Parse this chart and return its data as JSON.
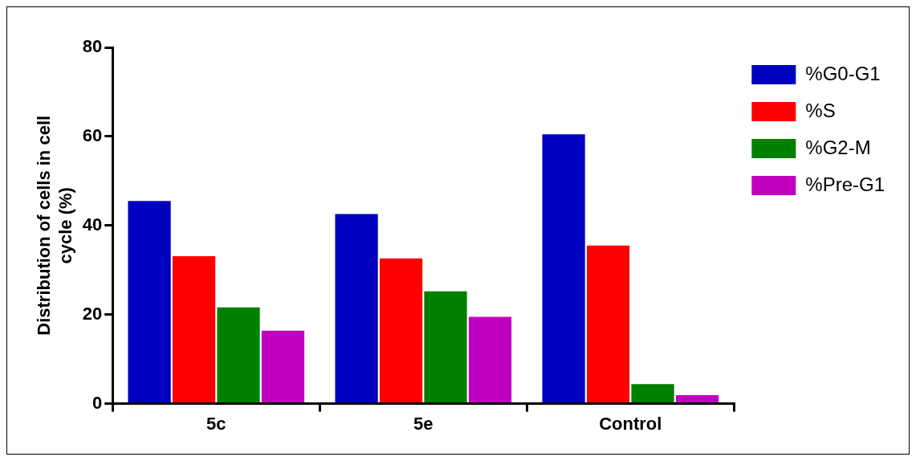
{
  "chart_data": {
    "type": "bar",
    "ylabel": "Distribution of cells in cell cycle (%)",
    "categories": [
      "5c",
      "5e",
      "Control"
    ],
    "series": [
      {
        "name": "%G0-G1",
        "color": "#0000c0",
        "values": [
          45.5,
          42.6,
          60.5
        ]
      },
      {
        "name": "%S",
        "color": "#ff0000",
        "values": [
          33.1,
          32.6,
          35.5
        ]
      },
      {
        "name": "%G2-M",
        "color": "#008000",
        "values": [
          21.6,
          25.2,
          4.4
        ]
      },
      {
        "name": "%Pre-G1",
        "color": "#c000c0",
        "values": [
          16.4,
          19.5,
          1.9
        ]
      }
    ],
    "ylim": [
      0,
      80
    ],
    "yticks": [
      0,
      20,
      40,
      60,
      80
    ],
    "grid": false,
    "legend": "top right"
  }
}
